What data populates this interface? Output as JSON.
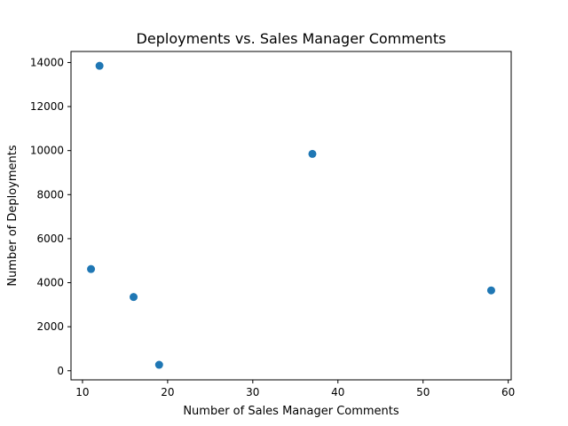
{
  "chart_data": {
    "type": "scatter",
    "title": "Deployments vs. Sales Manager Comments",
    "xlabel": "Number of Sales Manager Comments",
    "ylabel": "Number of Deployments",
    "xlim": [
      8.65,
      60.35
    ],
    "ylim": [
      -413,
      14502
    ],
    "xticks": [
      10,
      20,
      30,
      40,
      50,
      60
    ],
    "yticks": [
      0,
      2000,
      4000,
      6000,
      8000,
      10000,
      12000,
      14000
    ],
    "grid": false,
    "marker_color": "#1f77b4",
    "points": [
      {
        "x": 12,
        "y": 13850
      },
      {
        "x": 37,
        "y": 9850
      },
      {
        "x": 11,
        "y": 4620
      },
      {
        "x": 16,
        "y": 3350
      },
      {
        "x": 58,
        "y": 3650
      },
      {
        "x": 19,
        "y": 270
      }
    ]
  }
}
